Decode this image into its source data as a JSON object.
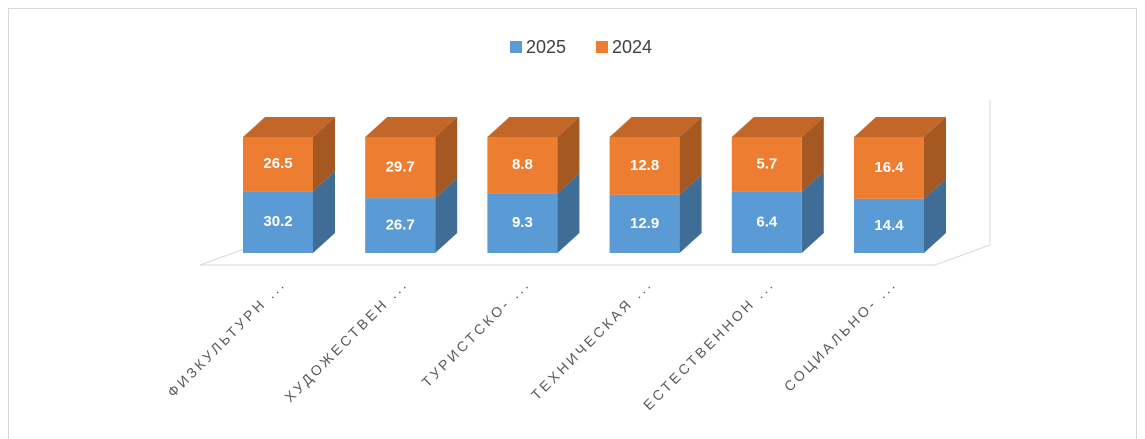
{
  "chart_data": {
    "type": "bar3d_stacked",
    "percent_stacked": true,
    "categories": [
      "ФИЗКУЛЬТУРН ...",
      "ХУДОЖЕСТВЕН ...",
      "ТУРИСТСКО- ...",
      "ТЕХНИЧЕСКАЯ ...",
      "ЕСТЕСТВЕННОН ...",
      "СОЦИАЛЬНО- ..."
    ],
    "series": [
      {
        "name": "2025",
        "color": "#5b9bd5",
        "values": [
          30.2,
          26.7,
          9.3,
          12.9,
          6.4,
          14.4
        ]
      },
      {
        "name": "2024",
        "color": "#ed7d31",
        "values": [
          26.5,
          29.7,
          8.8,
          12.8,
          5.7,
          16.4
        ]
      }
    ],
    "legend": "top"
  }
}
